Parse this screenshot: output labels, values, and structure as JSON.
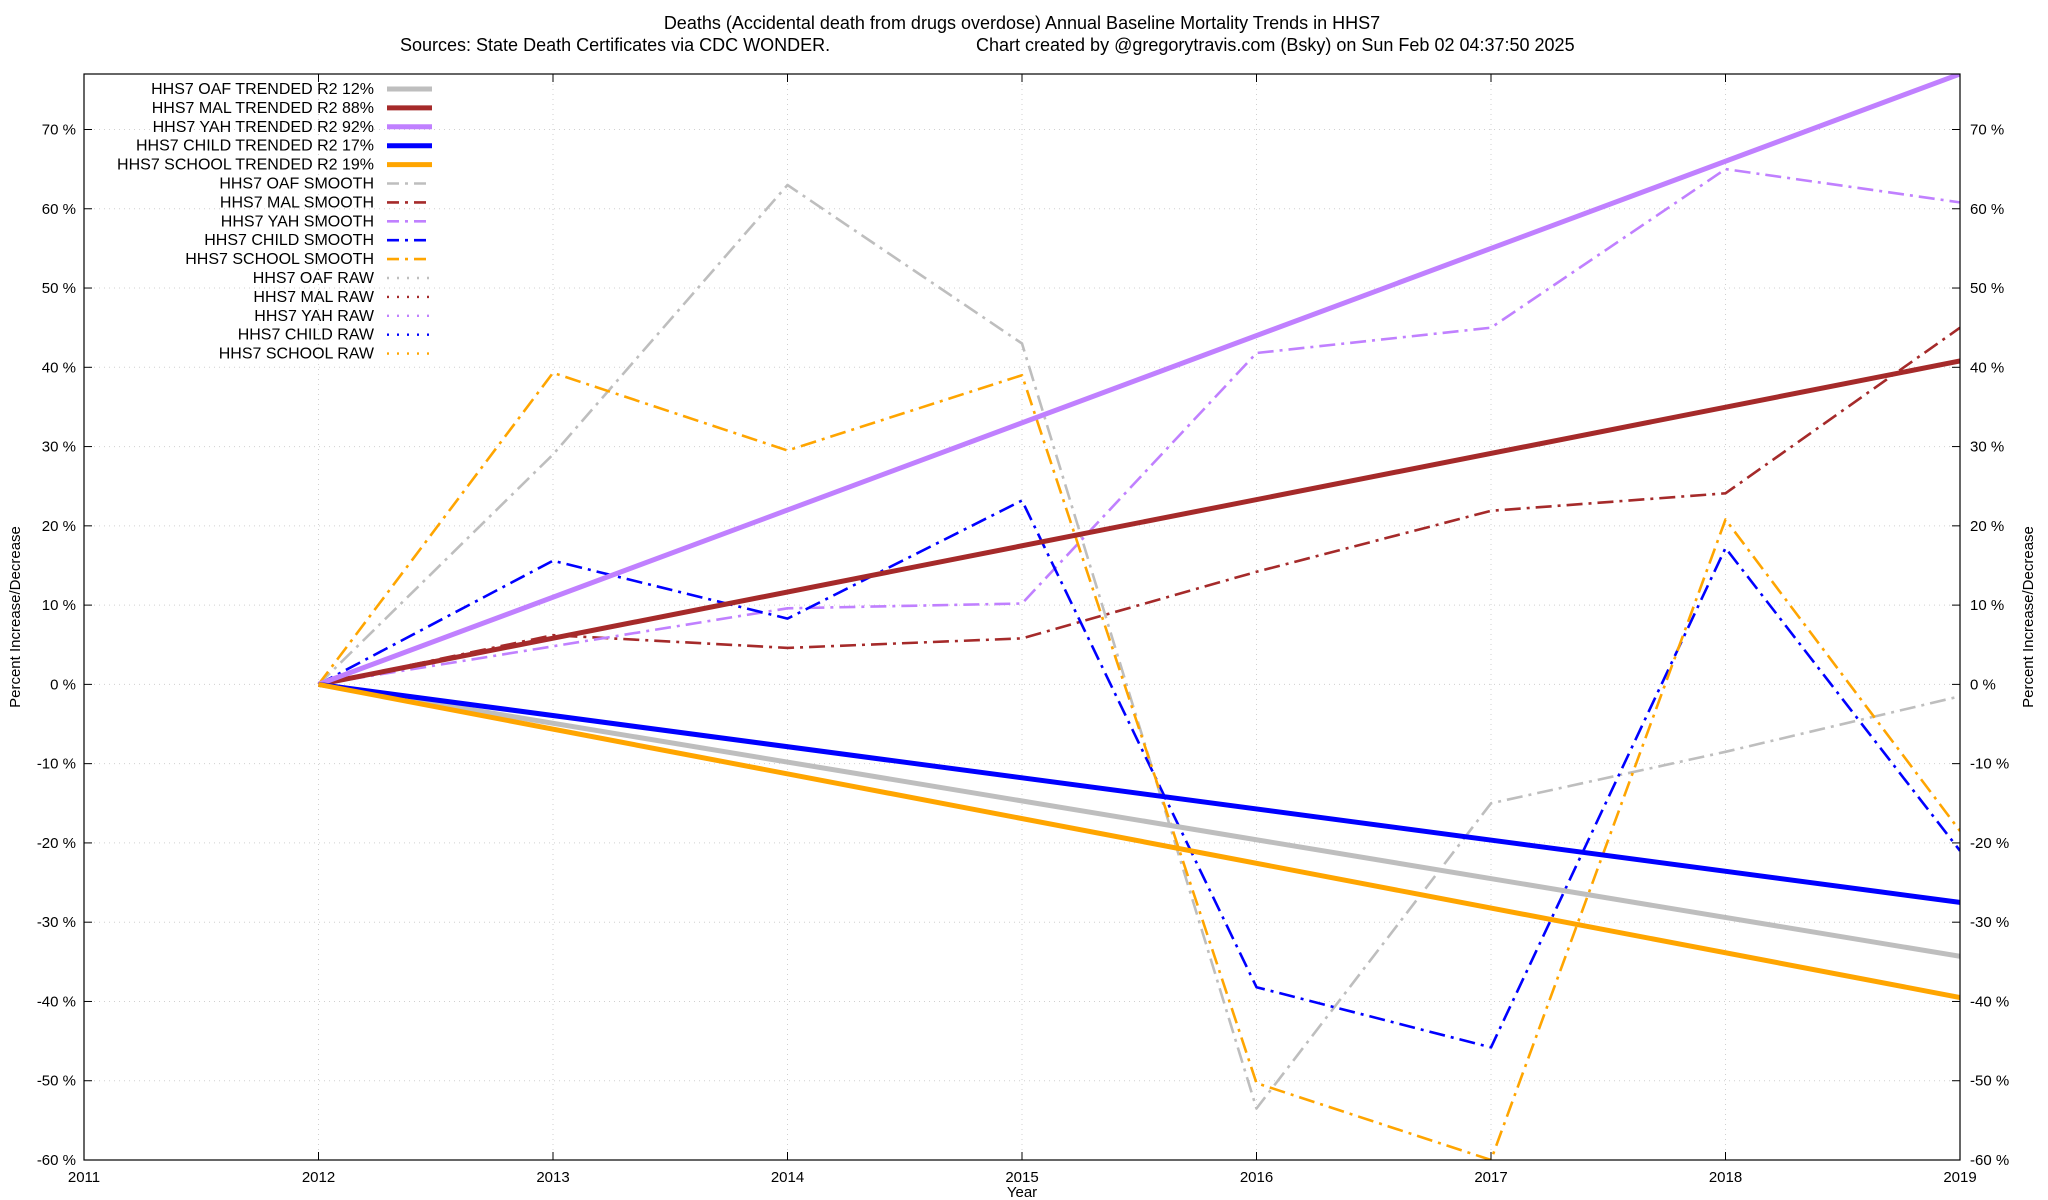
{
  "chart_data": {
    "type": "line",
    "title": "Deaths (Accidental death from drugs overdose)  Annual Baseline Mortality Trends in HHS7",
    "subtitle_left": "Sources: State Death Certificates via CDC WONDER.",
    "subtitle_right": "Chart created by @gregorytravis.com (Bsky) on Sun Feb 02 04:37:50 2025",
    "xlabel": "Year",
    "ylabel_left": "Percent Increase/Decrease",
    "ylabel_right": "Percent Increase/Decrease",
    "xlim": [
      2011,
      2019
    ],
    "ylim": [
      -60,
      77
    ],
    "x_ticks": [
      "2011",
      "2012",
      "2013",
      "2014",
      "2015",
      "2016",
      "2017",
      "2018",
      "2019"
    ],
    "y_ticks": [
      -60,
      -50,
      -40,
      -30,
      -20,
      -10,
      0,
      10,
      20,
      30,
      40,
      50,
      60,
      70
    ],
    "y_tick_labels": [
      "-60 %",
      "-50 %",
      "-40 %",
      "-30 %",
      "-20 %",
      "-10 %",
      "0 %",
      "10 %",
      "20 %",
      "30 %",
      "40 %",
      "50 %",
      "60 %",
      "70 %"
    ],
    "grid": true,
    "legend_position": "top-left",
    "colors": {
      "oaf": "#bebebe",
      "mal": "#a52a2a",
      "yah": "#c080ff",
      "child": "#0000ff",
      "school": "#ffa500"
    },
    "series": [
      {
        "name": "HHS7 OAF TRENDED R2  12%",
        "group": "oaf",
        "style": "trend",
        "x": [
          2012,
          2019
        ],
        "values": [
          0,
          -34.3
        ]
      },
      {
        "name": "HHS7 MAL TRENDED R2  88%",
        "group": "mal",
        "style": "trend",
        "x": [
          2012,
          2019
        ],
        "values": [
          0,
          40.8
        ]
      },
      {
        "name": "HHS7 YAH TRENDED R2  92%",
        "group": "yah",
        "style": "trend",
        "x": [
          2012,
          2019
        ],
        "values": [
          0,
          77
        ]
      },
      {
        "name": "HHS7 CHILD TRENDED R2  17%",
        "group": "child",
        "style": "trend",
        "x": [
          2012,
          2019
        ],
        "values": [
          0,
          -27.5
        ]
      },
      {
        "name": "HHS7 SCHOOL TRENDED R2  19%",
        "group": "school",
        "style": "trend",
        "x": [
          2012,
          2019
        ],
        "values": [
          0,
          -39.5
        ]
      },
      {
        "name": "HHS7 OAF SMOOTH",
        "group": "oaf",
        "style": "smooth",
        "x": [
          2012,
          2013,
          2014,
          2015,
          2016,
          2017,
          2018,
          2019
        ],
        "values": [
          0,
          29,
          63,
          43,
          -53.5,
          -15,
          -8.5,
          -1.5
        ]
      },
      {
        "name": "HHS7 MAL SMOOTH",
        "group": "mal",
        "style": "smooth",
        "x": [
          2012,
          2013,
          2014,
          2015,
          2016,
          2017,
          2018,
          2019
        ],
        "values": [
          0,
          6.2,
          4.6,
          5.8,
          14.2,
          21.9,
          24.1,
          45
        ]
      },
      {
        "name": "HHS7 YAH SMOOTH",
        "group": "yah",
        "style": "smooth",
        "x": [
          2012,
          2013,
          2014,
          2015,
          2016,
          2017,
          2018,
          2019
        ],
        "values": [
          0,
          4.8,
          9.6,
          10.2,
          41.8,
          45,
          65,
          60.8
        ]
      },
      {
        "name": "HHS7 CHILD SMOOTH",
        "group": "child",
        "style": "smooth",
        "x": [
          2012,
          2013,
          2014,
          2015,
          2016,
          2017,
          2018,
          2019
        ],
        "values": [
          0,
          15.6,
          8.3,
          23.2,
          -38.2,
          -45.8,
          17.2,
          -21
        ]
      },
      {
        "name": "HHS7 SCHOOL SMOOTH",
        "group": "school",
        "style": "smooth",
        "x": [
          2012,
          2013,
          2014,
          2015,
          2016,
          2017,
          2018,
          2019
        ],
        "values": [
          0,
          39.3,
          29.5,
          39,
          -50.3,
          -60,
          20.8,
          -18.5
        ]
      },
      {
        "name": "HHS7 OAF RAW",
        "group": "oaf",
        "style": "raw",
        "x": [],
        "values": []
      },
      {
        "name": "HHS7 MAL RAW",
        "group": "mal",
        "style": "raw",
        "x": [],
        "values": []
      },
      {
        "name": "HHS7 YAH RAW",
        "group": "yah",
        "style": "raw",
        "x": [],
        "values": []
      },
      {
        "name": "HHS7 CHILD RAW",
        "group": "child",
        "style": "raw",
        "x": [],
        "values": []
      },
      {
        "name": "HHS7 SCHOOL RAW",
        "group": "school",
        "style": "raw",
        "x": [],
        "values": []
      }
    ]
  }
}
